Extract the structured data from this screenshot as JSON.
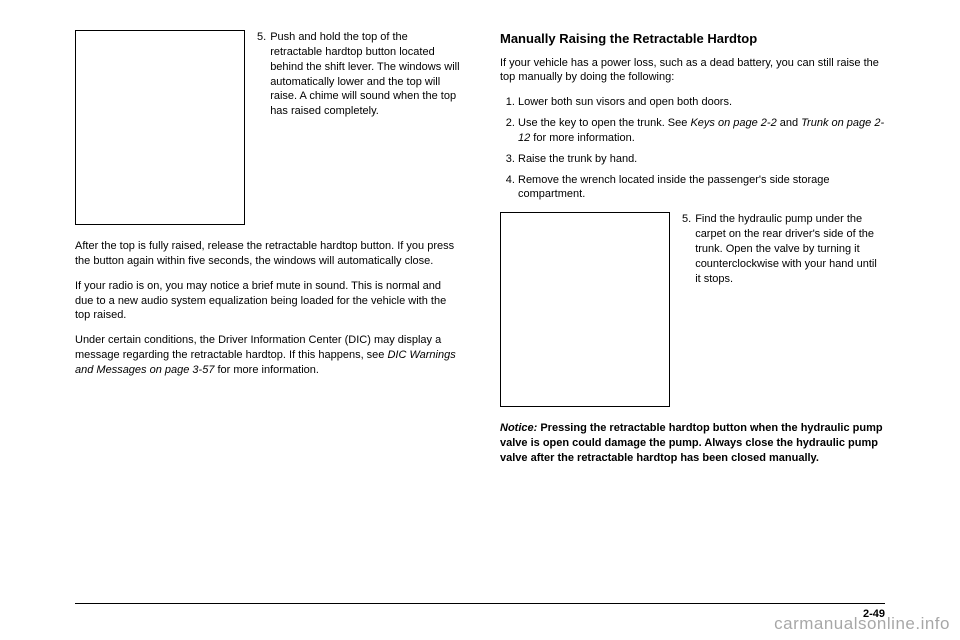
{
  "left": {
    "step5_num": "5.",
    "step5_text": "Push and hold the top of the retractable hardtop button located behind the shift lever. The windows will automatically lower and the top will raise. A chime will sound when the top has raised completely.",
    "p1": "After the top is fully raised, release the retractable hardtop button. If you press the button again within five seconds, the windows will automatically close.",
    "p2": "If your radio is on, you may notice a brief mute in sound. This is normal and due to a new audio system equalization being loaded for the vehicle with the top raised.",
    "p3a": "Under certain conditions, the Driver Information Center (DIC) may display a message regarding the retractable hardtop. If this happens, see ",
    "p3b": "DIC Warnings and Messages on page 3-57",
    "p3c": " for more information."
  },
  "right": {
    "heading": "Manually Raising the Retractable Hardtop",
    "intro": "If your vehicle has a power loss, such as a dead battery, you can still raise the top manually by doing the following:",
    "li1": "Lower both sun visors and open both doors.",
    "li2a": "Use the key to open the trunk. See ",
    "li2b": "Keys on page 2-2",
    "li2c": " and ",
    "li2d": "Trunk on page 2-12",
    "li2e": " for more information.",
    "li3": "Raise the trunk by hand.",
    "li4": "Remove the wrench located inside the passenger's side storage compartment.",
    "step5_num": "5.",
    "step5_text": "Find the hydraulic pump under the carpet on the rear driver's side of the trunk. Open the valve by turning it counterclockwise with your hand until it stops.",
    "notice_label": "Notice:",
    "notice_text": " Pressing the retractable hardtop button when the hydraulic pump valve is open could damage the pump. Always close the hydraulic pump valve after the retractable hardtop has been closed manually."
  },
  "footer": {
    "page": "2-49"
  },
  "watermark": "carmanualsonline.info"
}
